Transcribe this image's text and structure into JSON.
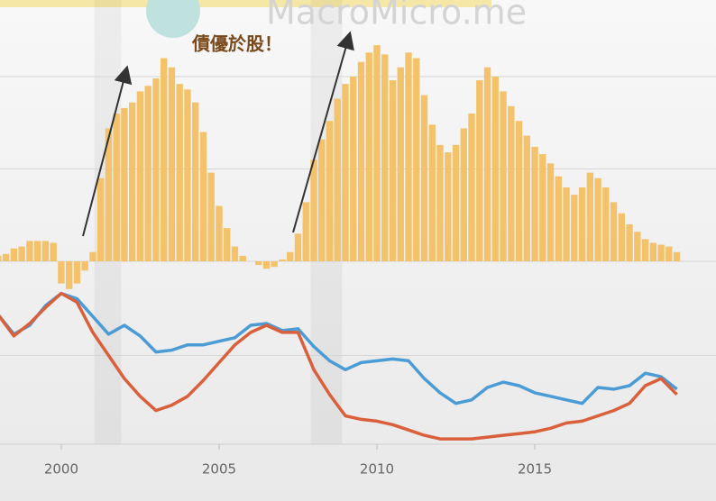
{
  "chart_data": [
    {
      "type": "bar",
      "watermark": "MacroMicro.me",
      "annotation": "債優於股！",
      "color": "#f4c26a",
      "xlim": [
        1998.06,
        2020.74
      ],
      "ylim": [
        -20,
        140
      ],
      "ygrid": [
        0,
        50,
        100
      ],
      "grid": true,
      "shaded": [
        [
          2001.05,
          2001.9
        ],
        [
          2007.9,
          2008.9
        ]
      ],
      "x": [
        1998,
        1998.25,
        1998.5,
        1998.75,
        1999,
        1999.25,
        1999.5,
        1999.75,
        2000,
        2000.25,
        2000.5,
        2000.75,
        2001,
        2001.25,
        2001.5,
        2001.75,
        2002,
        2002.25,
        2002.5,
        2002.75,
        2003,
        2003.25,
        2003.5,
        2003.75,
        2004,
        2004.25,
        2004.5,
        2004.75,
        2005,
        2005.25,
        2005.5,
        2005.75,
        2006,
        2006.25,
        2006.5,
        2006.75,
        2007,
        2007.25,
        2007.5,
        2007.75,
        2008,
        2008.25,
        2008.5,
        2008.75,
        2009,
        2009.25,
        2009.5,
        2009.75,
        2010,
        2010.25,
        2010.5,
        2010.75,
        2011,
        2011.25,
        2011.5,
        2011.75,
        2012,
        2012.25,
        2012.5,
        2012.75,
        2013,
        2013.25,
        2013.5,
        2013.75,
        2014,
        2014.25,
        2014.5,
        2014.75,
        2015,
        2015.25,
        2015.5,
        2015.75,
        2016,
        2016.25,
        2016.5,
        2016.75,
        2017,
        2017.25,
        2017.5,
        2017.75,
        2018,
        2018.25,
        2018.5,
        2018.75,
        2019,
        2019.25,
        2019.5
      ],
      "values": [
        3,
        4,
        7,
        8,
        11,
        11,
        11,
        10,
        -12,
        -15,
        -12,
        -5,
        5,
        45,
        72,
        80,
        83,
        86,
        92,
        95,
        99,
        110,
        105,
        96,
        93,
        86,
        70,
        48,
        30,
        18,
        8,
        3,
        0,
        -2,
        -4,
        -3,
        1,
        5,
        15,
        32,
        55,
        66,
        76,
        88,
        96,
        100,
        108,
        113,
        117,
        112,
        98,
        105,
        113,
        110,
        90,
        74,
        63,
        59,
        63,
        72,
        80,
        98,
        105,
        100,
        92,
        84,
        76,
        68,
        62,
        58,
        53,
        46,
        40,
        36,
        40,
        48,
        45,
        40,
        32,
        26,
        20,
        16,
        12,
        10,
        9,
        8,
        5
      ]
    },
    {
      "type": "line",
      "xlim": [
        1998.06,
        2020.74
      ],
      "ylim": [
        0,
        100
      ],
      "ygrid": [
        50
      ],
      "grid": true,
      "xticks": [
        2000,
        2005,
        2010,
        2015
      ],
      "x": [
        1998,
        1998.5,
        1999,
        1999.5,
        2000,
        2000.5,
        2001,
        2001.5,
        2002,
        2002.5,
        2003,
        2003.5,
        2004,
        2004.5,
        2005,
        2005.5,
        2006,
        2006.5,
        2007,
        2007.5,
        2008,
        2008.5,
        2009,
        2009.5,
        2010,
        2010.5,
        2011,
        2011.5,
        2012,
        2012.5,
        2013,
        2013.5,
        2014,
        2014.5,
        2015,
        2015.5,
        2016,
        2016.5,
        2017,
        2017.5,
        2018,
        2018.5,
        2019,
        2019.5
      ],
      "series": [
        {
          "color": "#4b9bd5",
          "values": [
            73,
            62,
            67,
            78,
            85,
            82,
            72,
            62,
            67,
            61,
            52,
            53,
            56,
            56,
            58,
            60,
            67,
            68,
            64,
            65,
            55,
            47,
            42,
            46,
            47,
            48,
            47,
            37,
            29,
            23,
            25,
            32,
            35,
            33,
            29,
            27,
            25,
            23,
            32,
            31,
            33,
            40,
            38,
            31
          ]
        },
        {
          "color": "#d9603a",
          "values": [
            73,
            61,
            68,
            77,
            85,
            80,
            63,
            50,
            37,
            27,
            19,
            22,
            27,
            36,
            46,
            56,
            63,
            67,
            63,
            63,
            42,
            28,
            16,
            14,
            13,
            11,
            8,
            5,
            3,
            3,
            3,
            4,
            5,
            6,
            7,
            9,
            12,
            13,
            16,
            19,
            23,
            33,
            37,
            28
          ]
        }
      ]
    }
  ]
}
